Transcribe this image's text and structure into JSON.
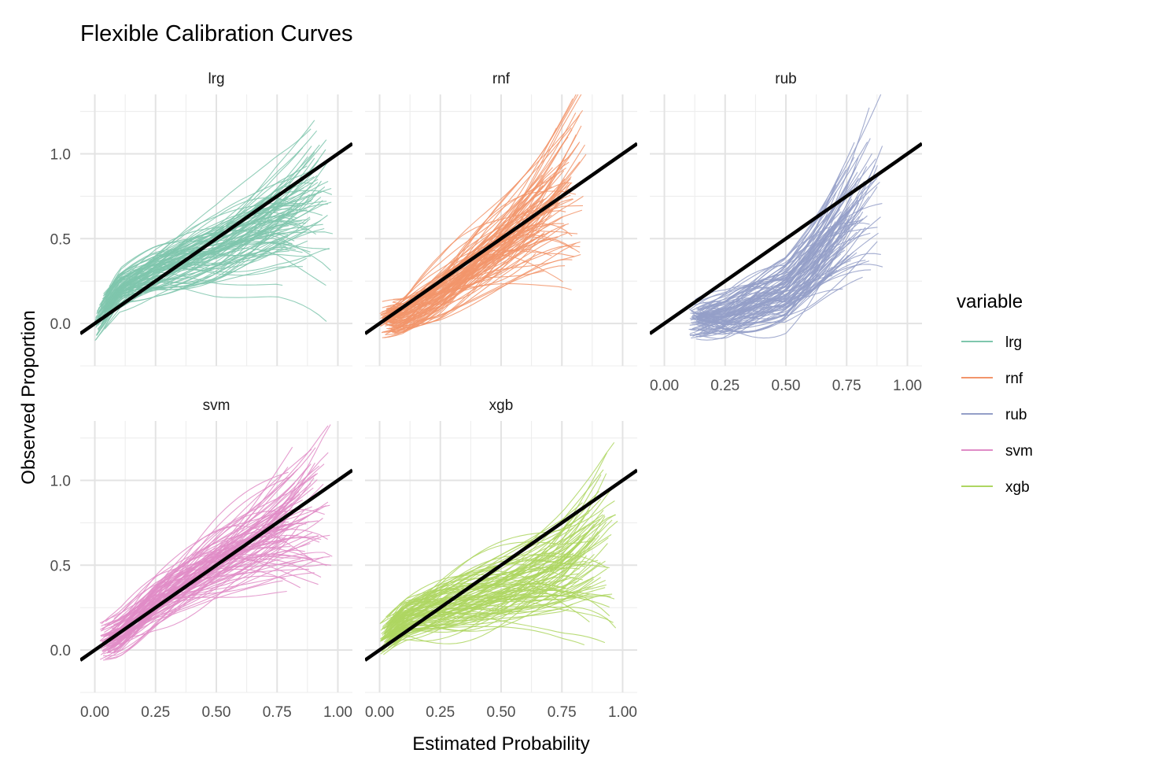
{
  "chart_data": {
    "type": "line",
    "title": "Flexible Calibration Curves",
    "xlabel": "Estimated Probability",
    "ylabel": "Observed Proportion",
    "xlim": [
      -0.06,
      1.06
    ],
    "ylim": [
      -0.25,
      1.35
    ],
    "x_ticks": [
      0.0,
      0.25,
      0.5,
      0.75,
      1.0
    ],
    "x_tick_labels": [
      "0.00",
      "0.25",
      "0.50",
      "0.75",
      "1.00"
    ],
    "y_ticks": [
      0.0,
      0.5,
      1.0
    ],
    "y_tick_labels": [
      "0.0",
      "0.5",
      "1.0"
    ],
    "grid": true,
    "reference_line": {
      "slope": 1,
      "intercept": 0,
      "color": "#000000"
    },
    "legend": {
      "title": "variable",
      "position": "right",
      "entries": [
        {
          "label": "lrg",
          "color": "#7FC6AD"
        },
        {
          "label": "rnf",
          "color": "#F2956B"
        },
        {
          "label": "rub",
          "color": "#949FC8"
        },
        {
          "label": "svm",
          "color": "#E08CC7"
        },
        {
          "label": "xgb",
          "color": "#AED661"
        }
      ]
    },
    "facets": [
      {
        "name": "lrg",
        "color": "#7FC6AD",
        "n_curves": 100,
        "x_range": [
          0.0,
          0.98
        ],
        "mean_curve": {
          "x": [
            0.0,
            0.1,
            0.25,
            0.5,
            0.75,
            0.95
          ],
          "y": [
            0.0,
            0.2,
            0.3,
            0.42,
            0.58,
            0.65
          ]
        }
      },
      {
        "name": "rnf",
        "color": "#F2956B",
        "n_curves": 100,
        "x_range": [
          0.0,
          0.85
        ],
        "mean_curve": {
          "x": [
            0.0,
            0.1,
            0.25,
            0.5,
            0.75,
            0.85
          ],
          "y": [
            0.02,
            0.05,
            0.18,
            0.45,
            0.72,
            0.8
          ]
        }
      },
      {
        "name": "rub",
        "color": "#949FC8",
        "n_curves": 100,
        "x_range": [
          0.1,
          0.9
        ],
        "mean_curve": {
          "x": [
            0.1,
            0.25,
            0.5,
            0.6,
            0.75,
            0.9
          ],
          "y": [
            0.03,
            0.05,
            0.18,
            0.32,
            0.58,
            0.85
          ]
        }
      },
      {
        "name": "svm",
        "color": "#E08CC7",
        "n_curves": 100,
        "x_range": [
          0.02,
          0.98
        ],
        "mean_curve": {
          "x": [
            0.02,
            0.1,
            0.25,
            0.5,
            0.75,
            0.95
          ],
          "y": [
            0.05,
            0.1,
            0.28,
            0.5,
            0.7,
            0.85
          ]
        }
      },
      {
        "name": "xgb",
        "color": "#AED661",
        "n_curves": 100,
        "x_range": [
          0.0,
          0.98
        ],
        "mean_curve": {
          "x": [
            0.0,
            0.1,
            0.25,
            0.5,
            0.75,
            0.95
          ],
          "y": [
            0.05,
            0.18,
            0.25,
            0.35,
            0.45,
            0.58
          ]
        }
      }
    ]
  }
}
